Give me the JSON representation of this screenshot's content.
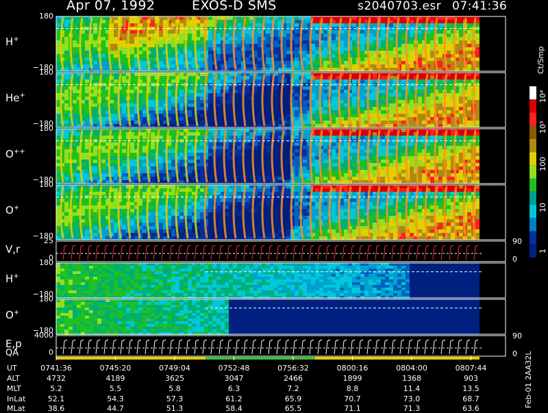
{
  "header": {
    "date": "Apr 07, 1992",
    "mission": "EXOS-D SMS",
    "file": "s2040703.esr",
    "time": "07:41:36"
  },
  "panels": [
    {
      "id": "h1",
      "label": "H",
      "charge": "+",
      "top_tick": "180",
      "bottom_tick": "−180"
    },
    {
      "id": "he",
      "label": "He",
      "charge": "+",
      "top_tick": "180",
      "bottom_tick": "−180"
    },
    {
      "id": "o2",
      "label": "O",
      "charge": "++",
      "top_tick": "180",
      "bottom_tick": "−180"
    },
    {
      "id": "o1",
      "label": "O",
      "charge": "+",
      "top_tick": "180",
      "bottom_tick": "−180"
    },
    {
      "id": "vr",
      "label": "V,r",
      "charge": "",
      "top_tick": "25",
      "bottom_tick": "0",
      "right_top": "90",
      "right_bottom": "0"
    },
    {
      "id": "h2",
      "label": "H",
      "charge": "+",
      "top_tick": "180",
      "bottom_tick": "−180"
    },
    {
      "id": "o3",
      "label": "O",
      "charge": "+",
      "top_tick": "180",
      "bottom_tick": "−180"
    },
    {
      "id": "ep",
      "label": "E,p",
      "charge": "",
      "top_tick": "4000",
      "bottom_tick": "0",
      "right_top": "90",
      "right_bottom": "0"
    }
  ],
  "qa_label": "QA",
  "colorbar": {
    "unit": "Ct/Smp",
    "labels": [
      "10⁴",
      "10³",
      "100",
      "10",
      "1"
    ],
    "colors": [
      "#ffffff",
      "#d90000",
      "#ff2020",
      "#8b5a00",
      "#b08a10",
      "#e0d000",
      "#90e020",
      "#20c020",
      "#00a090",
      "#00c8d8",
      "#0080c0",
      "#0030a0",
      "#002080"
    ]
  },
  "ephemeris": {
    "names": [
      "UT",
      "ALT",
      "MLT",
      "InLat",
      "MLat"
    ],
    "rows": [
      [
        "0741:36",
        "0745:20",
        "0749:04",
        "0752:48",
        "0756:32",
        "0800:16",
        "0804:00",
        "0807:44"
      ],
      [
        "4732",
        "4189",
        "3625",
        "3047",
        "2466",
        "1899",
        "1368",
        "903"
      ],
      [
        "5.2",
        "5.5",
        "5.8",
        "6.3",
        "7.2",
        "8.8",
        "11.4",
        "13.5"
      ],
      [
        "52.1",
        "54.3",
        "57.3",
        "61.2",
        "65.9",
        "70.7",
        "73.0",
        "68.7"
      ],
      [
        "38.6",
        "44.7",
        "51.3",
        "58.4",
        "65.5",
        "71.1",
        "71.3",
        "63.6"
      ]
    ]
  },
  "footer": "Feb-01 2AA32L",
  "chart_data": {
    "type": "heatmap",
    "x_ticks": [
      "0741:36",
      "0745:20",
      "0749:04",
      "0752:48",
      "0756:32",
      "0800:16",
      "0804:00",
      "0807:44"
    ],
    "colorscale_unit": "Ct/Smp",
    "colorscale_ticks": [
      "1",
      "10",
      "100",
      "10³",
      "10⁴"
    ]
  }
}
